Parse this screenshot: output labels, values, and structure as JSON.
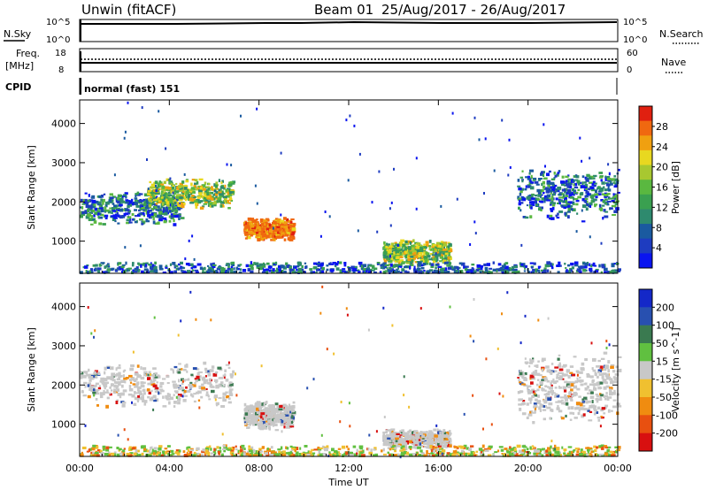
{
  "header": {
    "station": "Unwin (fitACF)",
    "beam": "Beam 01",
    "date_range": "25/Aug/2017 - 26/Aug/2017"
  },
  "strip_panels": {
    "nsky": {
      "label": "N.Sky",
      "tick_top": "10^5",
      "tick_bottom": "10^0"
    },
    "nsearch": {
      "label": "N.Search",
      "tick_top": "10^5",
      "tick_bottom": "10^0"
    },
    "freq": {
      "label_line1": "Freq.",
      "label_line2": "[MHz]",
      "tick_top": "18",
      "tick_bottom": "8"
    },
    "nave": {
      "label": "Nave",
      "tick_top": "60",
      "tick_bottom": "0"
    },
    "cpid": {
      "label": "CPID",
      "value": "normal (fast) 151"
    }
  },
  "chart_data": [
    {
      "type": "heatmap",
      "name": "power",
      "ylabel": "Slant Range [km]",
      "xlabel": "",
      "xlim": [
        "00:00",
        "24:00"
      ],
      "ylim": [
        180,
        4600
      ],
      "x_ticks": [
        "00:00",
        "04:00",
        "08:00",
        "12:00",
        "16:00",
        "20:00",
        "00:00"
      ],
      "y_ticks": [
        1000,
        2000,
        3000,
        4000
      ],
      "colorbar": {
        "label": "Power [dB]",
        "ticks": [
          "4",
          "8",
          "12",
          "16",
          "20",
          "24",
          "28"
        ],
        "colors": [
          "#0a14f0",
          "#1e3cc0",
          "#1a5aa0",
          "#2e8a6e",
          "#3aa050",
          "#5ab840",
          "#a8c830",
          "#e8d820",
          "#f0a010",
          "#f06810",
          "#e02010"
        ]
      },
      "regions": [
        {
          "t0": 0.0,
          "t1": 4.5,
          "r0": 1400,
          "r1": 2300,
          "level": "low"
        },
        {
          "t0": 3.0,
          "t1": 6.8,
          "r0": 1800,
          "r1": 2600,
          "level": "mid"
        },
        {
          "t0": 7.3,
          "t1": 9.5,
          "r0": 1000,
          "r1": 1600,
          "level": "high"
        },
        {
          "t0": 13.5,
          "t1": 16.5,
          "r0": 350,
          "r1": 1050,
          "level": "mid"
        },
        {
          "t0": 19.5,
          "t1": 24.0,
          "r0": 1500,
          "r1": 2900,
          "level": "low"
        },
        {
          "t0": 0.0,
          "t1": 24.0,
          "r0": 200,
          "r1": 450,
          "level": "ground"
        }
      ]
    },
    {
      "type": "heatmap",
      "name": "velocity",
      "ylabel": "Slant Range [km]",
      "xlabel": "Time UT",
      "xlim": [
        "00:00",
        "24:00"
      ],
      "ylim": [
        180,
        4600
      ],
      "x_ticks": [
        "00:00",
        "04:00",
        "08:00",
        "12:00",
        "16:00",
        "20:00",
        "00:00"
      ],
      "y_ticks": [
        1000,
        2000,
        3000,
        4000
      ],
      "colorbar": {
        "label": "Velocity [m s^-1]",
        "ticks": [
          "200",
          "100",
          "50",
          "15",
          "-15",
          "-50",
          "-100",
          "-200"
        ],
        "colors": [
          "#1428c8",
          "#2850b0",
          "#3a7a50",
          "#60c040",
          "#c8c8c8",
          "#f0c030",
          "#f08c10",
          "#e85010",
          "#d81010"
        ]
      },
      "regions": [
        {
          "t0": 0.0,
          "t1": 6.8,
          "r0": 1400,
          "r1": 2600,
          "level": "neutral"
        },
        {
          "t0": 7.3,
          "t1": 9.5,
          "r0": 850,
          "r1": 1600,
          "level": "neutral"
        },
        {
          "t0": 13.5,
          "t1": 16.5,
          "r0": 350,
          "r1": 900,
          "level": "neutral"
        },
        {
          "t0": 19.5,
          "t1": 24.0,
          "r0": 1000,
          "r1": 2900,
          "level": "neutral"
        },
        {
          "t0": 0.0,
          "t1": 24.0,
          "r0": 200,
          "r1": 450,
          "level": "ground"
        }
      ]
    }
  ]
}
